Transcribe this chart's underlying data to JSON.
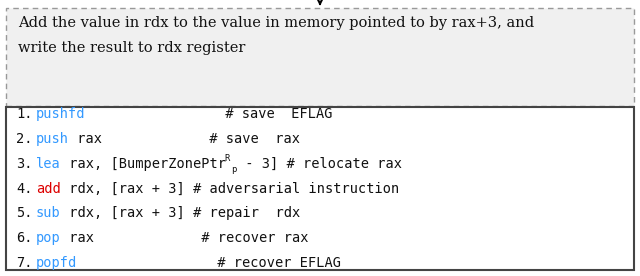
{
  "fig_width": 6.4,
  "fig_height": 2.76,
  "dpi": 100,
  "desc_line1": "Add the value in rdx to the value in memory pointed to by rax+3, and",
  "desc_line2": "write the result to rdx register",
  "desc_bg": "#f0f0f0",
  "code_bg": "#ffffff",
  "border_solid": "#444444",
  "border_dashed": "#999999",
  "blue": "#3399ff",
  "red": "#dd0000",
  "black": "#111111",
  "lines": [
    {
      "num": "1.",
      "mnemonic": "pushfd",
      "mc": "#3399ff",
      "rest": "                 # save  EFLAG",
      "special": false
    },
    {
      "num": "2.",
      "mnemonic": "push",
      "mc": "#3399ff",
      "rest": " rax             # save  rax",
      "special": false
    },
    {
      "num": "3.",
      "mnemonic": "lea",
      "mc": "#3399ff",
      "rest": " rax, [BumperZonePtr",
      "rest2": " - 3] # relocate rax",
      "special": true
    },
    {
      "num": "4.",
      "mnemonic": "add",
      "mc": "#dd0000",
      "rest": " rdx, [rax + 3] # adversarial instruction",
      "special": false
    },
    {
      "num": "5.",
      "mnemonic": "sub",
      "mc": "#3399ff",
      "rest": " rdx, [rax + 3] # repair  rdx",
      "special": false
    },
    {
      "num": "6.",
      "mnemonic": "pop",
      "mc": "#3399ff",
      "rest": " rax             # recover rax",
      "special": false
    },
    {
      "num": "7.",
      "mnemonic": "popfd",
      "mc": "#3399ff",
      "rest": "                 # recover EFLAG",
      "special": false
    }
  ]
}
